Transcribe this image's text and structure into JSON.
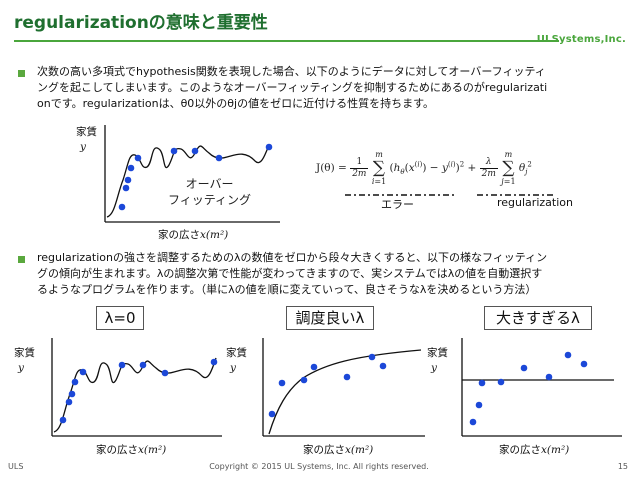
{
  "slide": {
    "title": "regularizationの意味と重要性",
    "brand": "ULSystems,Inc."
  },
  "bullets": [
    {
      "lines": [
        "次数の高い多項式でhypothesis関数を表現した場合、以下のようにデータに対してオーバーフィッティ",
        "ングを起こしてしまいます。このようなオーバーフィッティングを抑制するためにあるのがregularizati",
        "onです。regularizationは、θ0以外のθjの値をゼロに近付ける性質を持ちます。"
      ]
    },
    {
      "lines": [
        "regularizationの強さを調整するためのλの数値をゼロから段々大きくすると、以下の様なフィッティン",
        "グの傾向が生まれます。λの調整次第で性能が変わってきますので、実システムではλの値を自動選択す",
        "るようなプログラムを作ります。（単にλの値を順に変えていって、良さそうなλを決めるという方法）"
      ]
    }
  ],
  "top_chart": {
    "ylabel": "家賃",
    "yvar": "y",
    "xlabel": "家の広さ",
    "xvar": "x(m²)",
    "annotation_line1": "オーバー",
    "annotation_line2": "フィッティング"
  },
  "formula": {
    "lhs": "J(θ) =",
    "label_error": "エラー",
    "label_reg": "regularization"
  },
  "panels": [
    {
      "label": "λ=0",
      "ylabel": "家賃",
      "yvar": "y",
      "xlabel": "家の広さ",
      "xvar": "x(m²)"
    },
    {
      "label": "調度良いλ",
      "ylabel": "家賃",
      "yvar": "y",
      "xlabel": "家の広さ",
      "xvar": "x(m²)"
    },
    {
      "label": "大きすぎるλ",
      "ylabel": "家賃",
      "yvar": "y",
      "xlabel": "家の広さ",
      "xvar": "x(m²)"
    }
  ],
  "footer": {
    "left": "ULS",
    "copyright": "Copyright © 2015 UL Systems, Inc. All rights reserved.",
    "page": "15"
  },
  "colors": {
    "title": "#1f6f2f",
    "accent": "#4aa63c",
    "point": "#1c48d8",
    "curve": "#111111"
  }
}
